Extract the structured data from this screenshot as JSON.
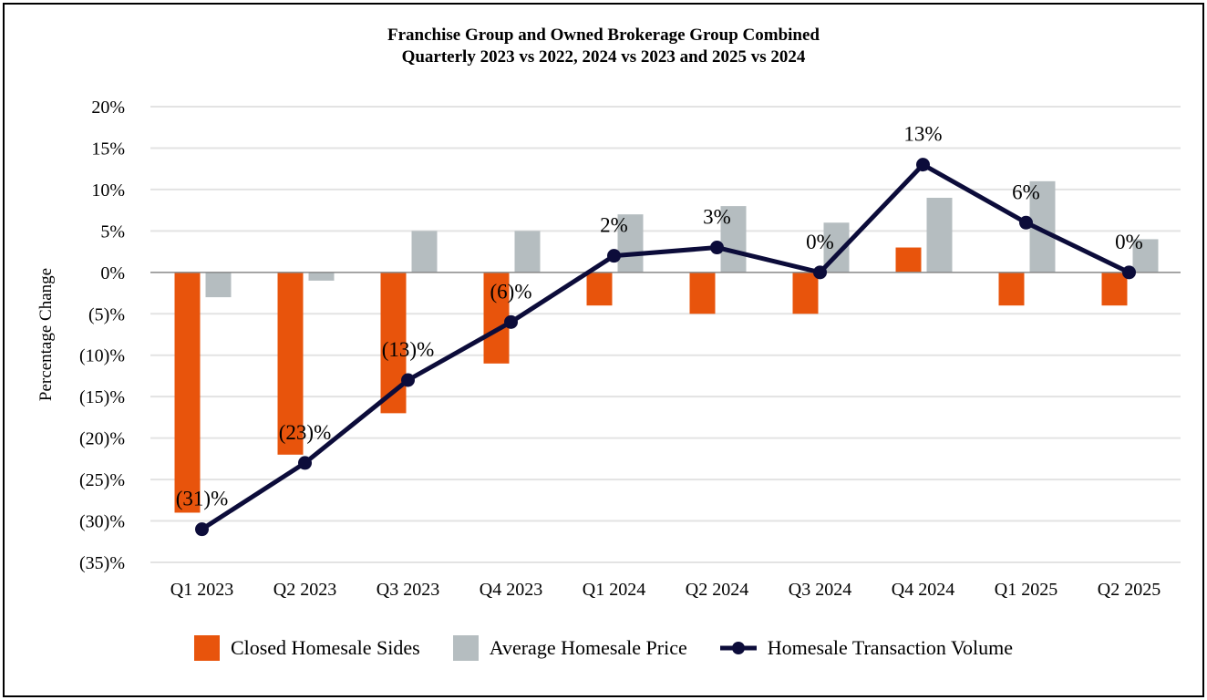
{
  "chart_data": {
    "type": "bar+line",
    "title": [
      "Franchise Group and Owned Brokerage Group Combined",
      "Quarterly 2023 vs 2022, 2024 vs 2023 and 2025 vs 2024"
    ],
    "ylabel": "Percentage Change",
    "ylim": [
      -35,
      20
    ],
    "yticks": [
      20,
      15,
      10,
      5,
      0,
      -5,
      -10,
      -15,
      -20,
      -25,
      -30,
      -35
    ],
    "ytick_labels": [
      "20%",
      "15%",
      "10%",
      "5%",
      "0%",
      "(5)%",
      "(10)%",
      "(15)%",
      "(20)%",
      "(25)%",
      "(30)%",
      "(35)%"
    ],
    "grid": true,
    "legend_position": "bottom",
    "categories": [
      "Q1 2023",
      "Q2 2023",
      "Q3 2023",
      "Q4 2023",
      "Q1 2024",
      "Q2 2024",
      "Q3 2024",
      "Q4 2024",
      "Q1 2025",
      "Q2 2025"
    ],
    "series": [
      {
        "name": "Closed Homesale Sides",
        "type": "bar",
        "color": "#E8540C",
        "values": [
          -29,
          -22,
          -17,
          -11,
          -4,
          -5,
          -5,
          3,
          -4,
          -4
        ]
      },
      {
        "name": "Average Homesale Price",
        "type": "bar",
        "color": "#B5BDC0",
        "values": [
          -3,
          -1,
          5,
          5,
          7,
          8,
          6,
          9,
          11,
          4
        ]
      },
      {
        "name": "Homesale Transaction Volume",
        "type": "line",
        "color": "#0C0C3A",
        "values": [
          -31,
          -23,
          -13,
          -6,
          2,
          3,
          0,
          13,
          6,
          0
        ],
        "data_labels": [
          "(31)%",
          "(23)%",
          "(13)%",
          "(6)%",
          "2%",
          "3%",
          "0%",
          "13%",
          "6%",
          "0%"
        ]
      }
    ]
  }
}
